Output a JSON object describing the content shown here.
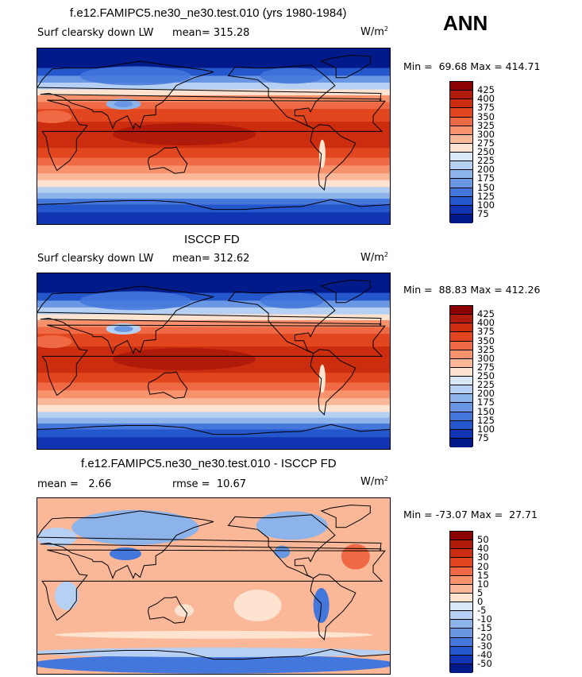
{
  "season": "ANN",
  "panels": [
    {
      "title": "f.e12.FAMIPC5.ne30_ne30.test.010 (yrs 1980-1984)",
      "left_label": "Surf clearsky down LW",
      "mean_label": "mean=",
      "mean_value": "315.28",
      "units": "W/m",
      "units_exp": "2",
      "min_label": "Min =",
      "min_value": "69.68",
      "max_label": "Max =",
      "max_value": "414.71",
      "colorbar": [
        "425",
        "400",
        "375",
        "350",
        "325",
        "300",
        "275",
        "250",
        "225",
        "200",
        "175",
        "150",
        "125",
        "100",
        "75"
      ]
    },
    {
      "title": "ISCCP FD",
      "left_label": "Surf clearsky down LW",
      "mean_label": "mean=",
      "mean_value": "312.62",
      "units": "W/m",
      "units_exp": "2",
      "min_label": "Min =",
      "min_value": "88.83",
      "max_label": "Max =",
      "max_value": "412.26",
      "colorbar": [
        "425",
        "400",
        "375",
        "350",
        "325",
        "300",
        "275",
        "250",
        "225",
        "200",
        "175",
        "150",
        "125",
        "100",
        "75"
      ]
    },
    {
      "title": "f.e12.FAMIPC5.ne30_ne30.test.010 - ISCCP FD",
      "mean_label": "mean =",
      "mean_value": "2.66",
      "rmse_label": "rmse =",
      "rmse_value": "10.67",
      "units": "W/m",
      "units_exp": "2",
      "min_label": "Min =",
      "min_value": "-73.07",
      "max_label": "Max =",
      "max_value": "27.71",
      "colorbar": [
        "50",
        "40",
        "30",
        "20",
        "15",
        "10",
        "5",
        "0",
        "-5",
        "-10",
        "-15",
        "-20",
        "-30",
        "-40",
        "-50"
      ]
    }
  ],
  "colors": {
    "scale": [
      "#8b0000",
      "#b01a0a",
      "#cc2d0f",
      "#e2461f",
      "#ef6a44",
      "#f8926c",
      "#fbb898",
      "#fde3d0",
      "#d9e8f8",
      "#b5d0f2",
      "#8cb3ea",
      "#6a97e3",
      "#4377dc",
      "#2456cc",
      "#1134b2",
      "#001a8a"
    ]
  }
}
